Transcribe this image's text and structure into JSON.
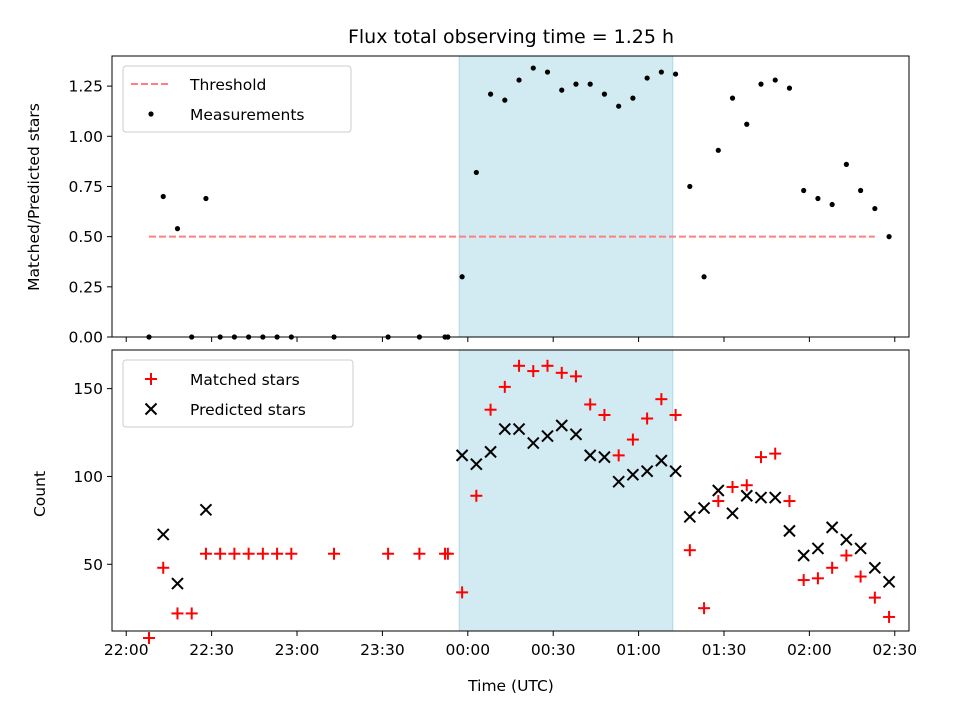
{
  "chart_data": [
    {
      "type": "scatter",
      "title": "Flux total observing time = 1.25 h",
      "xlabel": "",
      "ylabel": "Matched/Predicted stars",
      "ylim": [
        0,
        1.4
      ],
      "yticks": [
        "0.00",
        "0.25",
        "0.50",
        "0.75",
        "1.00",
        "1.25"
      ],
      "x_unit": "minutes after 22:00 UTC",
      "xlim": [
        -5,
        275
      ],
      "shaded_span_minutes": [
        117,
        192
      ],
      "shaded_color": "#add8e6",
      "legend_position": "top-left",
      "threshold": {
        "name": "Threshold",
        "value": 0.5,
        "x_range": [
          8,
          263
        ],
        "color": "#ff7f7f",
        "style": "dashed"
      },
      "series": [
        {
          "name": "Measurements",
          "marker": "dot",
          "color": "#000000",
          "points": [
            [
              8,
              0.0
            ],
            [
              13,
              0.7
            ],
            [
              18,
              0.54
            ],
            [
              23,
              0.0
            ],
            [
              28,
              0.69
            ],
            [
              33,
              0.0
            ],
            [
              38,
              0.0
            ],
            [
              43,
              0.0
            ],
            [
              48,
              0.0
            ],
            [
              53,
              0.0
            ],
            [
              58,
              0.0
            ],
            [
              73,
              0.0
            ],
            [
              92,
              0.0
            ],
            [
              103,
              0.0
            ],
            [
              112,
              0.0
            ],
            [
              113,
              0.0
            ],
            [
              118,
              0.3
            ],
            [
              123,
              0.82
            ],
            [
              128,
              1.21
            ],
            [
              133,
              1.18
            ],
            [
              138,
              1.28
            ],
            [
              143,
              1.34
            ],
            [
              148,
              1.32
            ],
            [
              153,
              1.23
            ],
            [
              158,
              1.26
            ],
            [
              163,
              1.26
            ],
            [
              168,
              1.21
            ],
            [
              173,
              1.15
            ],
            [
              178,
              1.19
            ],
            [
              183,
              1.29
            ],
            [
              188,
              1.32
            ],
            [
              193,
              1.31
            ],
            [
              198,
              0.75
            ],
            [
              203,
              0.3
            ],
            [
              208,
              0.93
            ],
            [
              213,
              1.19
            ],
            [
              218,
              1.06
            ],
            [
              223,
              1.26
            ],
            [
              228,
              1.28
            ],
            [
              233,
              1.24
            ],
            [
              238,
              0.73
            ],
            [
              243,
              0.69
            ],
            [
              248,
              0.66
            ],
            [
              253,
              0.86
            ],
            [
              258,
              0.73
            ],
            [
              263,
              0.64
            ],
            [
              268,
              0.5
            ]
          ]
        }
      ]
    },
    {
      "type": "scatter",
      "title": "",
      "xlabel": "Time (UTC)",
      "ylabel": "Count",
      "ylim": [
        12,
        172
      ],
      "yticks": [
        "50",
        "100",
        "150"
      ],
      "x_unit": "minutes after 22:00 UTC",
      "xlim": [
        -5,
        275
      ],
      "xticks": [
        "22:00",
        "22:30",
        "23:00",
        "23:30",
        "00:00",
        "00:30",
        "01:00",
        "01:30",
        "02:00",
        "02:30"
      ],
      "shaded_span_minutes": [
        117,
        192
      ],
      "shaded_color": "#add8e6",
      "legend_position": "top-left",
      "series": [
        {
          "name": "Matched stars",
          "marker": "plus",
          "color": "#ff0000",
          "points": [
            [
              8,
              8
            ],
            [
              13,
              48
            ],
            [
              18,
              22
            ],
            [
              23,
              22
            ],
            [
              28,
              56
            ],
            [
              33,
              56
            ],
            [
              38,
              56
            ],
            [
              43,
              56
            ],
            [
              48,
              56
            ],
            [
              53,
              56
            ],
            [
              58,
              56
            ],
            [
              73,
              56
            ],
            [
              92,
              56
            ],
            [
              103,
              56
            ],
            [
              112,
              56
            ],
            [
              113,
              56
            ],
            [
              118,
              34
            ],
            [
              123,
              89
            ],
            [
              128,
              138
            ],
            [
              133,
              151
            ],
            [
              138,
              163
            ],
            [
              143,
              160
            ],
            [
              148,
              163
            ],
            [
              153,
              159
            ],
            [
              158,
              157
            ],
            [
              163,
              141
            ],
            [
              168,
              135
            ],
            [
              173,
              112
            ],
            [
              178,
              121
            ],
            [
              183,
              133
            ],
            [
              188,
              144
            ],
            [
              193,
              135
            ],
            [
              198,
              58
            ],
            [
              203,
              25
            ],
            [
              208,
              86
            ],
            [
              213,
              94
            ],
            [
              218,
              95
            ],
            [
              223,
              111
            ],
            [
              228,
              113
            ],
            [
              233,
              86
            ],
            [
              238,
              41
            ],
            [
              243,
              42
            ],
            [
              248,
              48
            ],
            [
              253,
              55
            ],
            [
              258,
              43
            ],
            [
              263,
              31
            ],
            [
              268,
              20
            ]
          ]
        },
        {
          "name": "Predicted stars",
          "marker": "x",
          "color": "#000000",
          "points": [
            [
              13,
              67
            ],
            [
              18,
              39
            ],
            [
              28,
              81
            ],
            [
              118,
              112
            ],
            [
              123,
              107
            ],
            [
              128,
              114
            ],
            [
              133,
              127
            ],
            [
              138,
              127
            ],
            [
              143,
              119
            ],
            [
              148,
              123
            ],
            [
              153,
              129
            ],
            [
              158,
              124
            ],
            [
              163,
              112
            ],
            [
              168,
              111
            ],
            [
              173,
              97
            ],
            [
              178,
              101
            ],
            [
              183,
              103
            ],
            [
              188,
              109
            ],
            [
              193,
              103
            ],
            [
              198,
              77
            ],
            [
              203,
              82
            ],
            [
              208,
              92
            ],
            [
              213,
              79
            ],
            [
              218,
              89
            ],
            [
              223,
              88
            ],
            [
              228,
              88
            ],
            [
              233,
              69
            ],
            [
              238,
              55
            ],
            [
              243,
              59
            ],
            [
              248,
              71
            ],
            [
              253,
              64
            ],
            [
              258,
              59
            ],
            [
              263,
              48
            ],
            [
              268,
              40
            ]
          ]
        }
      ]
    }
  ]
}
